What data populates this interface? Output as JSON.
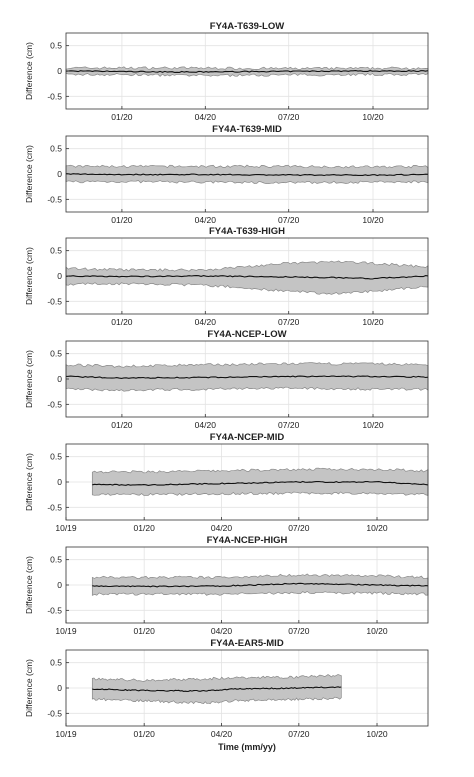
{
  "chart_data": [
    {
      "type": "line",
      "title": "FY4A-T639-LOW",
      "ylabel": "Difference (cm)",
      "xlabel": "",
      "x_range": [
        "2019-11-01",
        "2020-11-30"
      ],
      "xticks": [
        "01/20",
        "04/20",
        "07/20",
        "10/20"
      ],
      "ylim": [
        -0.75,
        0.75
      ],
      "yticks": [
        -0.5,
        0,
        0.5
      ],
      "grid": true,
      "series": [
        {
          "x": [
            "2019-11-01",
            "2020-01-01",
            "2020-03-15",
            "2020-06-01",
            "2020-09-01",
            "2020-11-30"
          ],
          "mean": [
            0,
            -0.01,
            -0.02,
            -0.01,
            0.0,
            0.0
          ],
          "upper": [
            0.06,
            0.06,
            0.06,
            0.05,
            0.05,
            0.06
          ],
          "lower": [
            -0.07,
            -0.07,
            -0.09,
            -0.08,
            -0.07,
            -0.07
          ]
        }
      ]
    },
    {
      "type": "line",
      "title": "FY4A-T639-MID",
      "ylabel": "Difference (cm)",
      "xlabel": "",
      "x_range": [
        "2019-11-01",
        "2020-11-30"
      ],
      "xticks": [
        "01/20",
        "04/20",
        "07/20",
        "10/20"
      ],
      "ylim": [
        -0.75,
        0.75
      ],
      "yticks": [
        -0.5,
        0,
        0.5
      ],
      "grid": true,
      "series": [
        {
          "x": [
            "2019-11-01",
            "2020-01-01",
            "2020-04-01",
            "2020-07-01",
            "2020-10-01",
            "2020-11-30"
          ],
          "mean": [
            0,
            -0.01,
            -0.01,
            -0.02,
            -0.02,
            -0.01
          ],
          "upper": [
            0.15,
            0.15,
            0.15,
            0.15,
            0.14,
            0.15
          ],
          "lower": [
            -0.15,
            -0.15,
            -0.16,
            -0.17,
            -0.16,
            -0.15
          ]
        }
      ]
    },
    {
      "type": "line",
      "title": "FY4A-T639-HIGH",
      "ylabel": "Difference (cm)",
      "xlabel": "",
      "x_range": [
        "2019-11-01",
        "2020-11-30"
      ],
      "xticks": [
        "01/20",
        "04/20",
        "07/20",
        "10/20"
      ],
      "ylim": [
        -0.75,
        0.75
      ],
      "yticks": [
        -0.5,
        0,
        0.5
      ],
      "grid": true,
      "series": [
        {
          "x": [
            "2019-11-01",
            "2020-01-01",
            "2020-04-01",
            "2020-07-01",
            "2020-08-15",
            "2020-10-01",
            "2020-11-30"
          ],
          "mean": [
            0,
            -0.01,
            0.0,
            -0.02,
            -0.03,
            -0.05,
            0.0
          ],
          "upper": [
            0.15,
            0.12,
            0.12,
            0.25,
            0.28,
            0.25,
            0.18
          ],
          "lower": [
            -0.16,
            -0.15,
            -0.18,
            -0.3,
            -0.35,
            -0.3,
            -0.2
          ]
        }
      ]
    },
    {
      "type": "line",
      "title": "FY4A-NCEP-LOW",
      "ylabel": "Difference (cm)",
      "xlabel": "",
      "x_range": [
        "2019-11-01",
        "2020-11-30"
      ],
      "xticks": [
        "01/20",
        "04/20",
        "07/20",
        "10/20"
      ],
      "ylim": [
        -0.75,
        0.75
      ],
      "yticks": [
        -0.5,
        0,
        0.5
      ],
      "grid": true,
      "series": [
        {
          "x": [
            "2019-11-01",
            "2020-01-01",
            "2020-04-01",
            "2020-07-01",
            "2020-10-01",
            "2020-11-30"
          ],
          "mean": [
            0.05,
            0.02,
            0.03,
            0.05,
            0.05,
            0.04
          ],
          "upper": [
            0.28,
            0.25,
            0.28,
            0.3,
            0.3,
            0.28
          ],
          "lower": [
            -0.2,
            -0.22,
            -0.2,
            -0.18,
            -0.2,
            -0.2
          ]
        }
      ]
    },
    {
      "type": "line",
      "title": "FY4A-NCEP-MID",
      "ylabel": "Difference (cm)",
      "xlabel": "",
      "x_range": [
        "2019-10-01",
        "2020-11-30"
      ],
      "xticks": [
        "10/19",
        "01/20",
        "04/20",
        "07/20",
        "10/20"
      ],
      "ylim": [
        -0.75,
        0.75
      ],
      "yticks": [
        -0.5,
        0,
        0.5
      ],
      "grid": true,
      "series": [
        {
          "x": [
            "2019-11-01",
            "2020-01-01",
            "2020-04-01",
            "2020-07-01",
            "2020-10-01",
            "2020-11-30"
          ],
          "mean": [
            -0.05,
            -0.06,
            -0.03,
            0.0,
            0.0,
            -0.05
          ],
          "upper": [
            0.2,
            0.2,
            0.22,
            0.25,
            0.25,
            0.22
          ],
          "lower": [
            -0.25,
            -0.25,
            -0.23,
            -0.22,
            -0.22,
            -0.25
          ]
        }
      ]
    },
    {
      "type": "line",
      "title": "FY4A-NCEP-HIGH",
      "ylabel": "Difference (cm)",
      "xlabel": "",
      "x_range": [
        "2019-10-01",
        "2020-11-30"
      ],
      "xticks": [
        "10/19",
        "01/20",
        "04/20",
        "07/20",
        "10/20"
      ],
      "ylim": [
        -0.75,
        0.75
      ],
      "yticks": [
        -0.5,
        0,
        0.5
      ],
      "grid": true,
      "series": [
        {
          "x": [
            "2019-11-01",
            "2020-01-01",
            "2020-04-01",
            "2020-07-01",
            "2020-10-01",
            "2020-11-30"
          ],
          "mean": [
            -0.02,
            -0.03,
            -0.02,
            0.03,
            0.0,
            -0.02
          ],
          "upper": [
            0.15,
            0.15,
            0.15,
            0.2,
            0.18,
            0.15
          ],
          "lower": [
            -0.18,
            -0.18,
            -0.18,
            -0.15,
            -0.16,
            -0.18
          ]
        }
      ]
    },
    {
      "type": "line",
      "title": "FY4A-EAR5-MID",
      "ylabel": "Difference (cm)",
      "xlabel": "Time (mm/yy)",
      "x_range": [
        "2019-10-01",
        "2020-11-30"
      ],
      "xticks": [
        "10/19",
        "01/20",
        "04/20",
        "07/20",
        "10/20"
      ],
      "ylim": [
        -0.75,
        0.75
      ],
      "yticks": [
        -0.5,
        0,
        0.5
      ],
      "grid": true,
      "series": [
        {
          "x": [
            "2019-11-01",
            "2020-01-01",
            "2020-03-10",
            "2020-04-15",
            "2020-07-01",
            "2020-08-20"
          ],
          "mean": [
            -0.02,
            -0.05,
            -0.06,
            -0.02,
            0.0,
            0.02
          ],
          "upper": [
            0.18,
            0.15,
            0.18,
            0.2,
            0.22,
            0.25
          ],
          "lower": [
            -0.22,
            -0.25,
            -0.3,
            -0.25,
            -0.22,
            -0.2
          ]
        }
      ]
    }
  ]
}
